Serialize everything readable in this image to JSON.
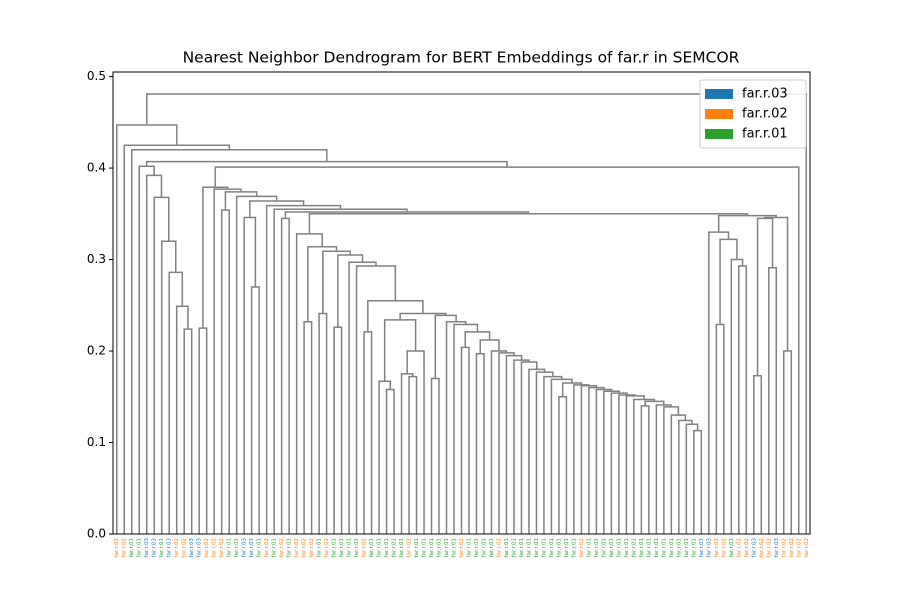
{
  "chart_data": {
    "type": "dendrogram",
    "title": "Nearest Neighbor Dendrogram for BERT Embeddings of far.r in SEMCOR",
    "ylim": [
      0,
      0.505
    ],
    "yticks": [
      {
        "value": 0,
        "label": "0.0"
      },
      0.1,
      0.2,
      0.3,
      0.4,
      0.5
    ],
    "link_color": "#808080",
    "legend": "upper right",
    "series": [
      {
        "name": "far.r.03",
        "color": "#1f77b4"
      },
      {
        "name": "far.r.02",
        "color": "#ff7f0e"
      },
      {
        "name": "far.r.01",
        "color": "#2ca02c"
      }
    ],
    "leaves": [
      "far.r.02",
      "far.r.02",
      "far.r.01",
      "far.r.01",
      "far.r.03",
      "far.r.03",
      "far.r.01",
      "far.r.03",
      "far.r.02",
      "far.r.02",
      "far.r.03",
      "far.r.03",
      "far.r.02",
      "far.r.02",
      "far.r.02",
      "far.r.01",
      "far.r.01",
      "far.r.03",
      "far.r.03",
      "far.r.01",
      "far.r.02",
      "far.r.01",
      "far.r.02",
      "far.r.01",
      "far.r.02",
      "far.r.02",
      "far.r.02",
      "far.r.01",
      "far.r.02",
      "far.r.01",
      "far.r.01",
      "far.r.01",
      "far.r.01",
      "far.r.02",
      "far.r.01",
      "far.r.01",
      "far.r.01",
      "far.r.01",
      "far.r.01",
      "far.r.02",
      "far.r.01",
      "far.r.01",
      "far.r.01",
      "far.r.01",
      "far.r.01",
      "far.r.01",
      "far.r.02",
      "far.r.01",
      "far.r.01",
      "far.r.01",
      "far.r.01",
      "far.r.02",
      "far.r.01",
      "far.r.01",
      "far.r.01",
      "far.r.01",
      "far.r.01",
      "far.r.01",
      "far.r.01",
      "far.r.01",
      "far.r.01",
      "far.r.01",
      "far.r.02",
      "far.r.01",
      "far.r.01",
      "far.r.01",
      "far.r.01",
      "far.r.01",
      "far.r.01",
      "far.r.01",
      "far.r.01",
      "far.r.01",
      "far.r.01",
      "far.r.01",
      "far.r.01",
      "far.r.01",
      "far.r.01",
      "far.r.01",
      "far.r.03",
      "far.r.03",
      "far.r.02",
      "far.r.02",
      "far.r.01",
      "far.r.02",
      "far.r.02",
      "far.r.03",
      "far.r.02",
      "far.r.02",
      "far.r.03",
      "far.r.02",
      "far.r.02",
      "far.r.02",
      "far.r.02"
    ],
    "links": [
      [
        9,
        10,
        0.224
      ],
      [
        8,
        93,
        0.249
      ],
      [
        7,
        94,
        0.286
      ],
      [
        6,
        95,
        0.32
      ],
      [
        5,
        96,
        0.368
      ],
      [
        4,
        97,
        0.392
      ],
      [
        3,
        98,
        0.402
      ],
      [
        11,
        12,
        0.225
      ],
      [
        14,
        15,
        0.354
      ],
      [
        18,
        19,
        0.27
      ],
      [
        17,
        102,
        0.346
      ],
      [
        22,
        23,
        0.345
      ],
      [
        25,
        26,
        0.232
      ],
      [
        27,
        28,
        0.241
      ],
      [
        29,
        30,
        0.226
      ],
      [
        33,
        34,
        0.221
      ],
      [
        36,
        37,
        0.158
      ],
      [
        35,
        109,
        0.167
      ],
      [
        39,
        40,
        0.172
      ],
      [
        38,
        111,
        0.175
      ],
      [
        112,
        41,
        0.2
      ],
      [
        110,
        113,
        0.234
      ],
      [
        77,
        78,
        0.113
      ],
      [
        76,
        115,
        0.12
      ],
      [
        75,
        116,
        0.124
      ],
      [
        74,
        117,
        0.13
      ],
      [
        73,
        118,
        0.139
      ],
      [
        72,
        119,
        0.141
      ],
      [
        70,
        71,
        0.14
      ],
      [
        121,
        120,
        0.145
      ],
      [
        69,
        122,
        0.147
      ],
      [
        68,
        123,
        0.151
      ],
      [
        67,
        124,
        0.152
      ],
      [
        66,
        125,
        0.154
      ],
      [
        65,
        126,
        0.156
      ],
      [
        64,
        127,
        0.158
      ],
      [
        63,
        128,
        0.16
      ],
      [
        62,
        129,
        0.162
      ],
      [
        61,
        130,
        0.163
      ],
      [
        59,
        60,
        0.15
      ],
      [
        132,
        131,
        0.165
      ],
      [
        58,
        133,
        0.169
      ],
      [
        57,
        134,
        0.172
      ],
      [
        56,
        135,
        0.177
      ],
      [
        55,
        136,
        0.18
      ],
      [
        54,
        137,
        0.188
      ],
      [
        53,
        138,
        0.19
      ],
      [
        52,
        139,
        0.195
      ],
      [
        51,
        140,
        0.198
      ],
      [
        50,
        141,
        0.2
      ],
      [
        48,
        49,
        0.197
      ],
      [
        143,
        142,
        0.212
      ],
      [
        46,
        47,
        0.204
      ],
      [
        145,
        144,
        0.221
      ],
      [
        45,
        146,
        0.229
      ],
      [
        44,
        147,
        0.232
      ],
      [
        42,
        43,
        0.17
      ],
      [
        149,
        148,
        0.239
      ],
      [
        114,
        150,
        0.241
      ],
      [
        108,
        151,
        0.255
      ],
      [
        32,
        152,
        0.293
      ],
      [
        31,
        153,
        0.297
      ],
      [
        107,
        154,
        0.305
      ],
      [
        106,
        155,
        0.309
      ],
      [
        105,
        156,
        0.314
      ],
      [
        24,
        157,
        0.328
      ],
      [
        83,
        84,
        0.293
      ],
      [
        82,
        159,
        0.3
      ],
      [
        80,
        81,
        0.229
      ],
      [
        161,
        160,
        0.322
      ],
      [
        79,
        162,
        0.33
      ],
      [
        85,
        86,
        0.173
      ],
      [
        87,
        88,
        0.291
      ],
      [
        164,
        165,
        0.345
      ],
      [
        89,
        90,
        0.2
      ],
      [
        166,
        167,
        0.346
      ],
      [
        163,
        168,
        0.348
      ],
      [
        158,
        169,
        0.35
      ],
      [
        104,
        170,
        0.352
      ],
      [
        21,
        171,
        0.355
      ],
      [
        20,
        172,
        0.359
      ],
      [
        103,
        173,
        0.364
      ],
      [
        16,
        174,
        0.369
      ],
      [
        101,
        175,
        0.374
      ],
      [
        13,
        176,
        0.377
      ],
      [
        100,
        177,
        0.379
      ],
      [
        178,
        91,
        0.401
      ],
      [
        99,
        179,
        0.407
      ],
      [
        2,
        180,
        0.42
      ],
      [
        1,
        181,
        0.425
      ],
      [
        0,
        182,
        0.447
      ],
      [
        183,
        92,
        0.481
      ]
    ]
  }
}
